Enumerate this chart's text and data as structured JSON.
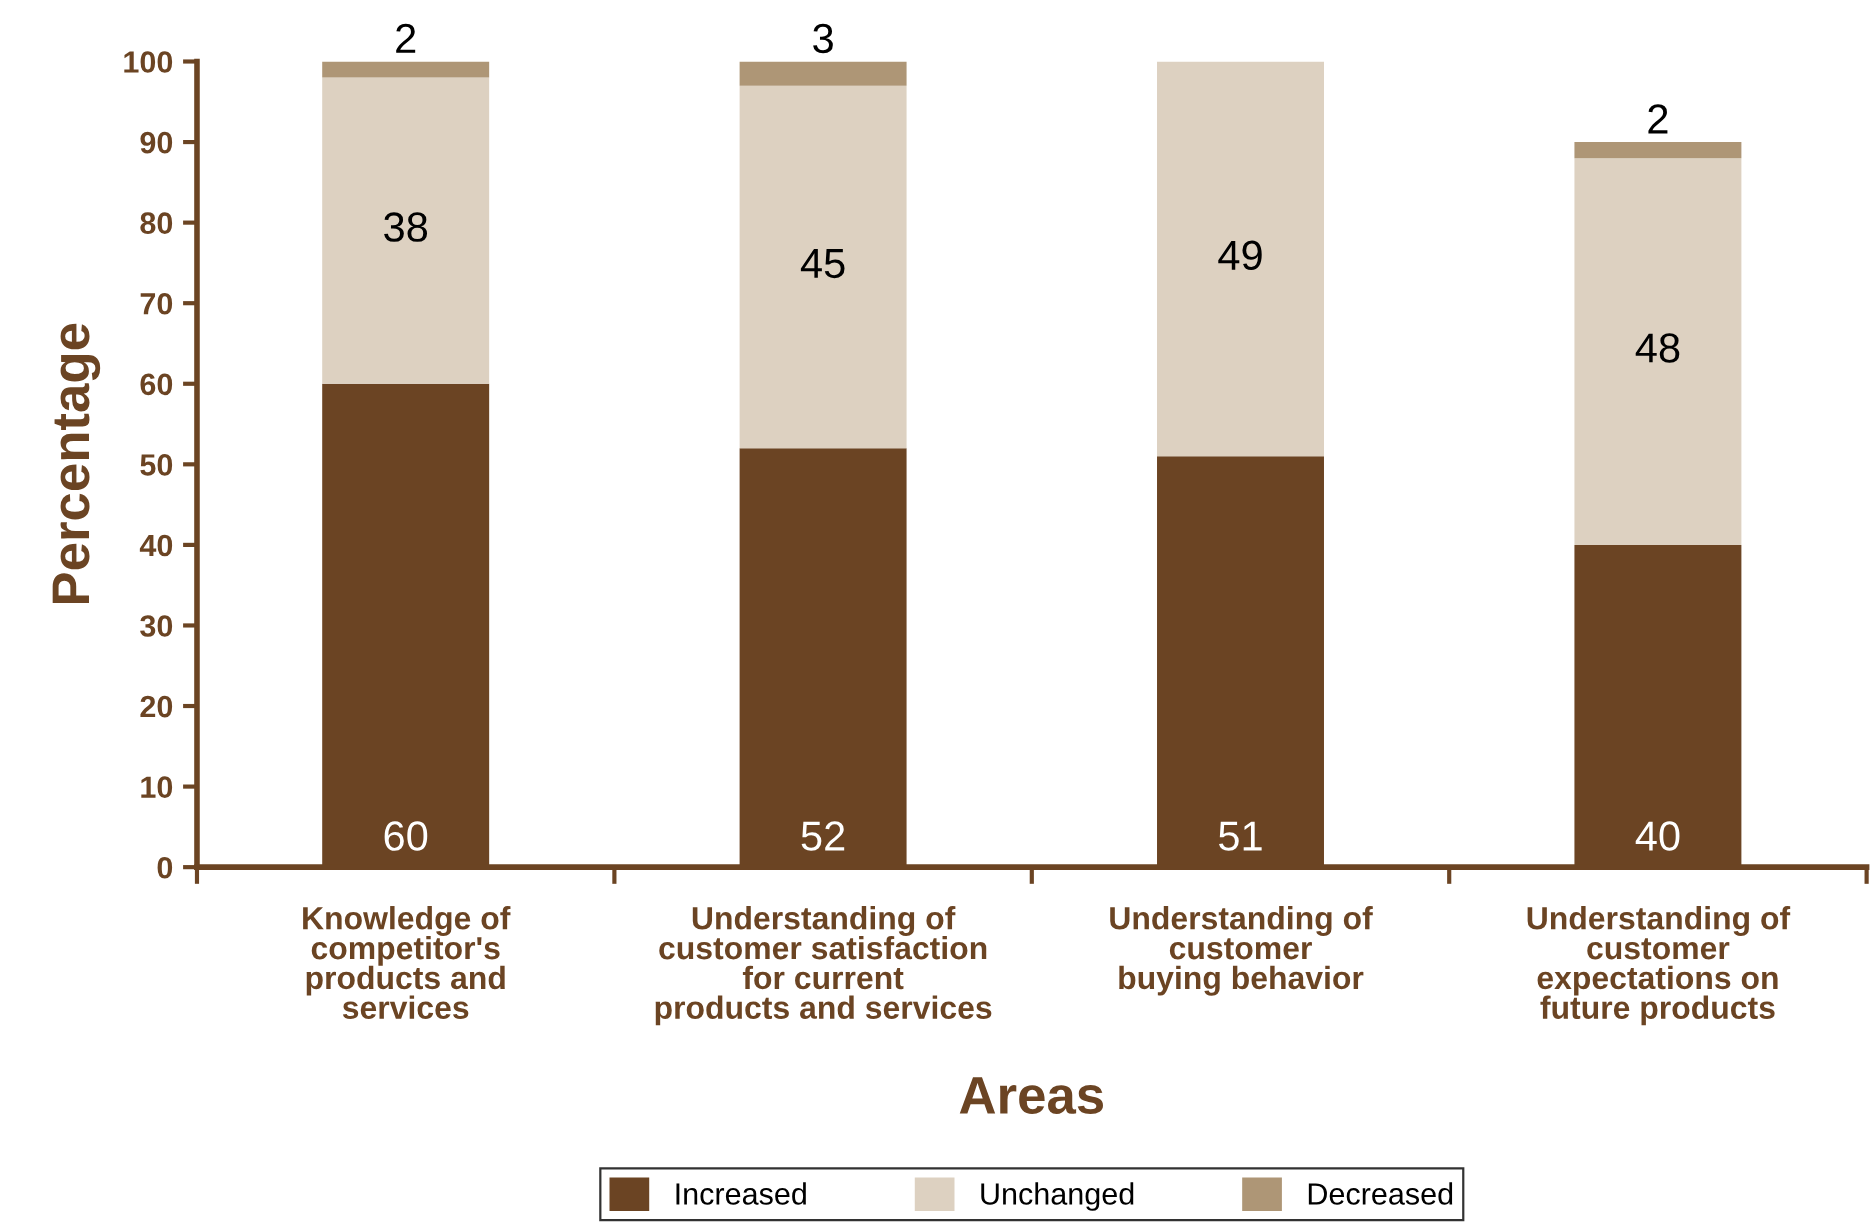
{
  "chart_data": {
    "type": "bar",
    "stacked": true,
    "xlabel": "Areas",
    "ylabel": "Percentage",
    "categories": [
      "Knowledge of\ncompetitor's\nproducts and\nservices",
      "Understanding of\ncustomer satisfaction\nfor current\nproducts and services",
      "Understanding of\ncustomer\nbuying behavior",
      "Understanding of\ncustomer\nexpectations on\nfuture products"
    ],
    "series": [
      {
        "name": "Increased",
        "color": "#6b4423",
        "values": [
          60,
          52,
          51,
          40
        ]
      },
      {
        "name": "Unchanged",
        "color": "#ddd1c1",
        "values": [
          38,
          45,
          49,
          48
        ]
      },
      {
        "name": "Decreased",
        "color": "#ae9676",
        "values": [
          2,
          3,
          null,
          2
        ]
      }
    ],
    "ylim": [
      0,
      100
    ],
    "yticks": [
      0,
      10,
      20,
      30,
      40,
      50,
      60,
      70,
      80,
      90,
      100
    ],
    "data_labels": true,
    "grid": false,
    "legend": "bottom"
  }
}
